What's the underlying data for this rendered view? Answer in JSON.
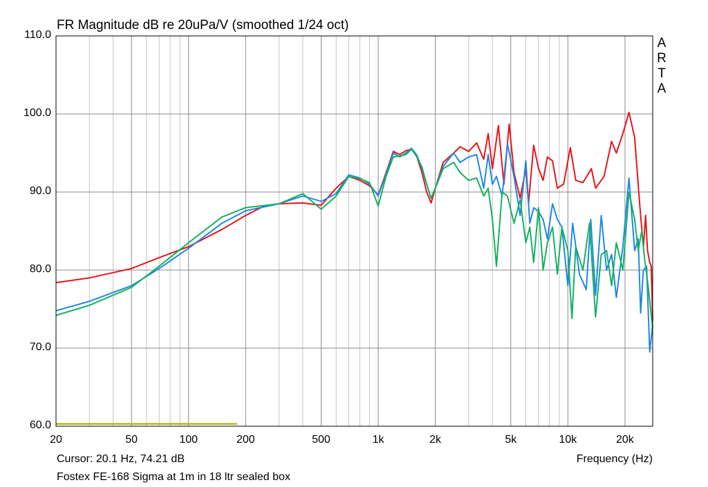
{
  "chart_data": {
    "type": "line",
    "title": "FR Magnitude dB re 20uPa/V (smoothed 1/24 oct)",
    "xlabel": "Frequency (Hz)",
    "ylabel": "",
    "x_scale": "log",
    "xlim": [
      20,
      28000
    ],
    "ylim": [
      60,
      110
    ],
    "grid": true,
    "y_ticks": [
      "110.0",
      "100.0",
      "90.0",
      "80.0",
      "70.0",
      "60.0"
    ],
    "y_tick_values": [
      110,
      100,
      90,
      80,
      70,
      60
    ],
    "x_ticks": [
      "20",
      "50",
      "100",
      "200",
      "500",
      "1k",
      "2k",
      "5k",
      "10k",
      "20k"
    ],
    "x_tick_values": [
      20,
      50,
      100,
      200,
      500,
      1000,
      2000,
      5000,
      10000,
      20000
    ],
    "series": [
      {
        "color": "#e8141a",
        "points": [
          [
            20,
            78.4
          ],
          [
            30,
            79.0
          ],
          [
            50,
            80.2
          ],
          [
            70,
            81.6
          ],
          [
            100,
            83.0
          ],
          [
            150,
            85.2
          ],
          [
            200,
            87.0
          ],
          [
            250,
            88.2
          ],
          [
            300,
            88.5
          ],
          [
            400,
            88.6
          ],
          [
            500,
            88.3
          ],
          [
            600,
            90.5
          ],
          [
            700,
            92.0
          ],
          [
            800,
            91.5
          ],
          [
            900,
            90.8
          ],
          [
            1000,
            89.6
          ],
          [
            1100,
            92.5
          ],
          [
            1200,
            95.2
          ],
          [
            1300,
            94.8
          ],
          [
            1400,
            95.3
          ],
          [
            1500,
            95.5
          ],
          [
            1600,
            94.5
          ],
          [
            1700,
            92.5
          ],
          [
            1800,
            90.0
          ],
          [
            1900,
            88.6
          ],
          [
            2000,
            90.5
          ],
          [
            2200,
            93.8
          ],
          [
            2500,
            95.0
          ],
          [
            2700,
            95.8
          ],
          [
            3000,
            95.2
          ],
          [
            3300,
            96.3
          ],
          [
            3600,
            94.2
          ],
          [
            3800,
            97.5
          ],
          [
            4000,
            93.0
          ],
          [
            4300,
            98.5
          ],
          [
            4600,
            91.0
          ],
          [
            4900,
            98.7
          ],
          [
            5200,
            92.5
          ],
          [
            5600,
            89.2
          ],
          [
            6000,
            93.0
          ],
          [
            6200,
            88.5
          ],
          [
            6600,
            96.0
          ],
          [
            7000,
            93.0
          ],
          [
            7400,
            91.5
          ],
          [
            7800,
            94.5
          ],
          [
            8300,
            94.0
          ],
          [
            8800,
            90.5
          ],
          [
            9500,
            91.0
          ],
          [
            10300,
            95.7
          ],
          [
            11000,
            91.5
          ],
          [
            12000,
            91.2
          ],
          [
            13300,
            93.0
          ],
          [
            14000,
            90.5
          ],
          [
            15500,
            92.0
          ],
          [
            17000,
            96.5
          ],
          [
            18000,
            95.0
          ],
          [
            19500,
            97.5
          ],
          [
            21000,
            100.2
          ],
          [
            22500,
            97.0
          ],
          [
            24000,
            88.0
          ],
          [
            25000,
            83.0
          ],
          [
            25700,
            87.0
          ],
          [
            26300,
            82.5
          ],
          [
            27000,
            81.0
          ],
          [
            27500,
            80.5
          ],
          [
            28000,
            73.5
          ]
        ]
      },
      {
        "color": "#1e88e5",
        "points": [
          [
            20,
            74.8
          ],
          [
            30,
            76.0
          ],
          [
            50,
            78.0
          ],
          [
            70,
            80.2
          ],
          [
            100,
            82.8
          ],
          [
            150,
            86.0
          ],
          [
            200,
            87.6
          ],
          [
            300,
            88.5
          ],
          [
            400,
            89.5
          ],
          [
            500,
            88.8
          ],
          [
            600,
            89.8
          ],
          [
            700,
            92.2
          ],
          [
            800,
            91.8
          ],
          [
            900,
            91.0
          ],
          [
            1000,
            89.5
          ],
          [
            1100,
            92.3
          ],
          [
            1200,
            95.0
          ],
          [
            1300,
            94.5
          ],
          [
            1400,
            95.0
          ],
          [
            1500,
            95.6
          ],
          [
            1600,
            94.7
          ],
          [
            1700,
            93.0
          ],
          [
            1800,
            91.0
          ],
          [
            1900,
            89.2
          ],
          [
            2000,
            90.5
          ],
          [
            2200,
            93.3
          ],
          [
            2500,
            95.0
          ],
          [
            2700,
            93.8
          ],
          [
            3000,
            94.5
          ],
          [
            3300,
            94.8
          ],
          [
            3600,
            90.5
          ],
          [
            3800,
            94.8
          ],
          [
            4000,
            91.0
          ],
          [
            4200,
            92.0
          ],
          [
            4500,
            89.5
          ],
          [
            4800,
            96.2
          ],
          [
            5200,
            92.0
          ],
          [
            5600,
            87.0
          ],
          [
            6000,
            94.0
          ],
          [
            6300,
            86.0
          ],
          [
            6600,
            88.0
          ],
          [
            7000,
            87.5
          ],
          [
            7400,
            86.5
          ],
          [
            7800,
            84.0
          ],
          [
            8300,
            88.5
          ],
          [
            8800,
            86.5
          ],
          [
            9300,
            85.5
          ],
          [
            10000,
            78.0
          ],
          [
            10600,
            86.0
          ],
          [
            11500,
            79.5
          ],
          [
            12500,
            77.5
          ],
          [
            13200,
            86.5
          ],
          [
            14000,
            76.8
          ],
          [
            15000,
            87.0
          ],
          [
            16000,
            80.0
          ],
          [
            17000,
            82.0
          ],
          [
            18000,
            76.5
          ],
          [
            19500,
            83.0
          ],
          [
            21000,
            91.8
          ],
          [
            22500,
            82.5
          ],
          [
            23500,
            84.0
          ],
          [
            24200,
            74.5
          ],
          [
            25000,
            80.0
          ],
          [
            26000,
            80.5
          ],
          [
            27000,
            69.5
          ],
          [
            28000,
            73.0
          ]
        ]
      },
      {
        "color": "#16b061",
        "points": [
          [
            20,
            74.2
          ],
          [
            30,
            75.5
          ],
          [
            50,
            77.8
          ],
          [
            70,
            80.5
          ],
          [
            100,
            83.5
          ],
          [
            150,
            86.8
          ],
          [
            200,
            88.0
          ],
          [
            300,
            88.5
          ],
          [
            400,
            89.8
          ],
          [
            500,
            87.8
          ],
          [
            600,
            89.5
          ],
          [
            700,
            92.0
          ],
          [
            800,
            91.7
          ],
          [
            900,
            91.2
          ],
          [
            1000,
            88.2
          ],
          [
            1100,
            92.0
          ],
          [
            1200,
            94.5
          ],
          [
            1300,
            94.6
          ],
          [
            1400,
            94.8
          ],
          [
            1500,
            95.5
          ],
          [
            1600,
            94.5
          ],
          [
            1700,
            93.2
          ],
          [
            1800,
            91.0
          ],
          [
            1900,
            89.2
          ],
          [
            2000,
            90.5
          ],
          [
            2200,
            93.0
          ],
          [
            2500,
            93.8
          ],
          [
            2700,
            92.5
          ],
          [
            3000,
            91.5
          ],
          [
            3300,
            91.8
          ],
          [
            3600,
            89.5
          ],
          [
            3800,
            90.5
          ],
          [
            4000,
            86.5
          ],
          [
            4200,
            80.5
          ],
          [
            4500,
            90.0
          ],
          [
            4800,
            89.5
          ],
          [
            5200,
            86.0
          ],
          [
            5600,
            89.0
          ],
          [
            6000,
            83.5
          ],
          [
            6300,
            85.5
          ],
          [
            6600,
            81.0
          ],
          [
            7000,
            88.0
          ],
          [
            7400,
            80.0
          ],
          [
            7800,
            83.5
          ],
          [
            8300,
            85.5
          ],
          [
            8800,
            79.5
          ],
          [
            9300,
            85.5
          ],
          [
            10000,
            82.5
          ],
          [
            10500,
            73.8
          ],
          [
            11000,
            83.0
          ],
          [
            12000,
            80.0
          ],
          [
            13000,
            86.0
          ],
          [
            14000,
            74.0
          ],
          [
            15000,
            82.0
          ],
          [
            16000,
            82.5
          ],
          [
            17000,
            78.0
          ],
          [
            18000,
            83.5
          ],
          [
            19500,
            80.0
          ],
          [
            21000,
            90.0
          ],
          [
            22500,
            86.5
          ],
          [
            23500,
            82.5
          ],
          [
            24500,
            85.0
          ],
          [
            25500,
            81.0
          ],
          [
            26500,
            78.0
          ],
          [
            28000,
            72.5
          ]
        ]
      },
      {
        "color": "#b5b51a",
        "points": [
          [
            20,
            60.3
          ],
          [
            180,
            60.3
          ]
        ]
      }
    ]
  },
  "brand": [
    "A",
    "R",
    "T",
    "A"
  ],
  "cursor_text": "Cursor: 20.1 Hz, 74.21 dB",
  "caption": "Fostex FE-168 Sigma at 1m in 18 ltr sealed box"
}
